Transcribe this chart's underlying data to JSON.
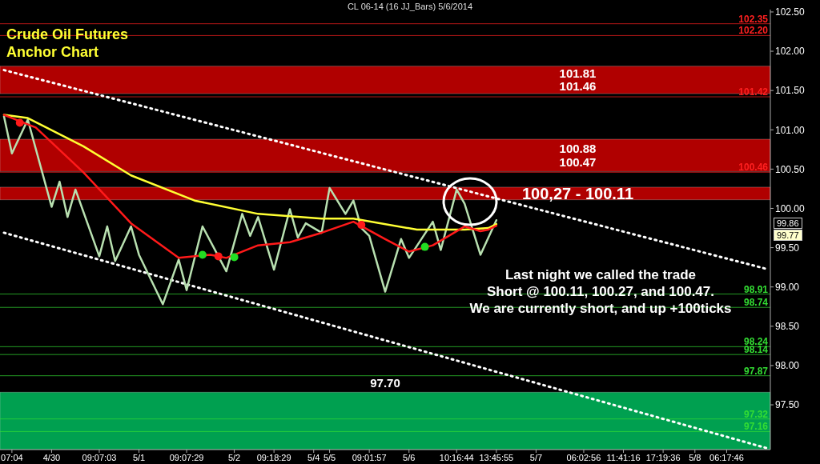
{
  "chart_data": {
    "type": "line",
    "title": "CL 06-14 (16 JJ_Bars)  5/6/2014",
    "categories": [
      null,
      "07:04",
      null,
      null,
      null,
      null,
      "4/30",
      null,
      null,
      null,
      null,
      null,
      "09:07:03",
      null,
      null,
      null,
      null,
      "5/1",
      null,
      null,
      null,
      null,
      null,
      "09:07:29",
      null,
      null,
      null,
      null,
      null,
      "5/2",
      null,
      null,
      null,
      null,
      "09:18:29",
      null,
      null,
      null,
      null,
      "5/4",
      null,
      "5/5",
      null,
      null,
      null,
      null,
      "09:01:57",
      null,
      null,
      null,
      null,
      "5/6",
      null,
      null,
      null,
      null,
      null,
      "10:16:44",
      null,
      null,
      null,
      null,
      "13:45:55",
      null,
      null,
      null,
      null,
      "5/7",
      null,
      null,
      null,
      null,
      null,
      "06:02:56",
      null,
      null,
      null,
      null,
      "11:41:16",
      null,
      null,
      null,
      null,
      "17:19:36",
      null,
      null,
      null,
      "5/8",
      null,
      null,
      null,
      "06:17:46",
      null,
      null,
      null,
      null,
      null
    ],
    "ylim": [
      96.93,
      102.53
    ],
    "yticks": [
      {
        "value": 97.5,
        "label": "97.50"
      },
      {
        "value": 98,
        "label": "98.00"
      },
      {
        "value": 98.5,
        "label": "98.50"
      },
      {
        "value": 99,
        "label": "99.00"
      },
      {
        "value": 99.5,
        "label": "99.50"
      },
      {
        "value": 100,
        "label": "100.00"
      },
      {
        "value": 100.5,
        "label": "100.50"
      },
      {
        "value": 101,
        "label": "101.00"
      },
      {
        "value": 101.5,
        "label": "101.50"
      },
      {
        "value": 102,
        "label": "102.00"
      },
      {
        "value": 102.5,
        "label": "102.50"
      }
    ],
    "grid": false,
    "legend": false,
    "series": [
      {
        "color": "#ffffff",
        "line_style": "dotted",
        "values": [
          101.76,
          null,
          null,
          null,
          null,
          null,
          null,
          null,
          null,
          null,
          null,
          null,
          null,
          null,
          null,
          null,
          null,
          null,
          null,
          null,
          null,
          null,
          null,
          null,
          null,
          null,
          null,
          null,
          null,
          null,
          null,
          null,
          null,
          null,
          null,
          null,
          null,
          null,
          null,
          null,
          null,
          null,
          null,
          null,
          null,
          null,
          null,
          null,
          null,
          null,
          null,
          null,
          null,
          null,
          null,
          null,
          null,
          null,
          null,
          null,
          null,
          null,
          null,
          null,
          null,
          null,
          null,
          null,
          null,
          null,
          null,
          null,
          null,
          null,
          null,
          null,
          null,
          null,
          null,
          null,
          null,
          null,
          null,
          null,
          null,
          null,
          null,
          null,
          null,
          null,
          null,
          null,
          null,
          null,
          null,
          null,
          99.23
        ]
      },
      {
        "color": "#ffffff",
        "line_style": "dotted",
        "values": [
          99.69,
          null,
          null,
          null,
          null,
          null,
          null,
          null,
          null,
          null,
          null,
          null,
          null,
          null,
          null,
          null,
          null,
          null,
          null,
          null,
          null,
          null,
          null,
          null,
          null,
          null,
          null,
          null,
          null,
          null,
          null,
          null,
          null,
          null,
          null,
          null,
          null,
          null,
          null,
          null,
          null,
          null,
          null,
          null,
          null,
          null,
          null,
          null,
          null,
          null,
          null,
          null,
          null,
          null,
          null,
          null,
          null,
          null,
          null,
          null,
          null,
          null,
          null,
          null,
          null,
          null,
          null,
          null,
          null,
          null,
          null,
          null,
          null,
          null,
          null,
          null,
          null,
          null,
          null,
          null,
          null,
          null,
          null,
          null,
          null,
          null,
          null,
          null,
          null,
          null,
          null,
          null,
          null,
          null,
          null,
          null,
          96.95
        ]
      },
      {
        "color": "#b8e0b0",
        "line_style": "solid",
        "values": [
          101.17,
          100.7,
          null,
          101.13,
          null,
          null,
          100.02,
          100.34,
          99.89,
          100.24,
          null,
          null,
          99.39,
          99.77,
          99.33,
          null,
          99.77,
          99.41,
          null,
          null,
          98.78,
          null,
          99.35,
          98.96,
          null,
          99.77,
          null,
          null,
          99.2,
          null,
          99.93,
          99.65,
          99.89,
          null,
          99.22,
          null,
          99.99,
          99.63,
          99.81,
          null,
          99.69,
          100.26,
          null,
          99.93,
          100.1,
          99.75,
          99.65,
          null,
          98.94,
          null,
          99.61,
          99.37,
          null,
          null,
          99.83,
          99.47,
          null,
          100.24,
          100.06,
          null,
          99.41,
          null,
          99.85,
          null,
          null,
          null,
          null,
          null,
          null,
          null,
          null,
          null,
          null,
          null,
          null,
          null,
          null,
          null,
          null,
          null,
          null,
          null,
          null,
          null,
          null,
          null,
          null,
          null,
          null,
          null,
          null,
          null,
          null,
          null,
          null,
          null,
          null
        ]
      },
      {
        "color": "#ffff33",
        "line_style": "solid",
        "values": [
          101.19,
          null,
          null,
          101.15,
          null,
          null,
          null,
          null,
          null,
          null,
          100.79,
          null,
          null,
          null,
          null,
          null,
          100.42,
          null,
          null,
          null,
          null,
          null,
          null,
          null,
          100.1,
          null,
          null,
          null,
          null,
          null,
          null,
          null,
          99.93,
          null,
          null,
          null,
          null,
          null,
          null,
          null,
          99.87,
          null,
          null,
          null,
          99.87,
          null,
          null,
          null,
          null,
          null,
          null,
          null,
          99.73,
          null,
          null,
          null,
          null,
          null,
          99.73,
          null,
          null,
          99.75,
          99.8,
          null,
          null,
          null,
          null,
          null,
          null,
          null,
          null,
          null,
          null,
          null,
          null,
          null,
          null,
          null,
          null,
          null,
          null,
          null,
          null,
          null,
          null,
          null,
          null,
          null,
          null,
          null,
          null,
          null,
          null,
          null,
          null,
          null,
          null
        ]
      },
      {
        "color": "#ff1a1a",
        "line_style": "solid",
        "values": [
          101.19,
          null,
          null,
          null,
          101.03,
          null,
          null,
          null,
          null,
          null,
          100.46,
          null,
          null,
          null,
          null,
          null,
          99.81,
          null,
          null,
          null,
          null,
          null,
          99.37,
          null,
          null,
          null,
          99.41,
          null,
          99.37,
          null,
          null,
          null,
          99.53,
          null,
          null,
          null,
          99.57,
          null,
          null,
          null,
          99.69,
          null,
          null,
          null,
          99.83,
          null,
          null,
          null,
          99.61,
          null,
          null,
          99.45,
          null,
          null,
          99.53,
          null,
          null,
          null,
          99.77,
          null,
          99.71,
          99.73,
          99.78,
          null,
          null,
          null,
          null,
          null,
          null,
          null,
          null,
          null,
          null,
          null,
          null,
          null,
          null,
          null,
          null,
          null,
          null,
          null,
          null,
          null,
          null,
          null,
          null,
          null,
          null,
          null,
          null,
          null,
          null,
          null,
          null,
          null,
          null
        ]
      },
      {
        "type": "scatter",
        "color": "#ff1a1a",
        "marker": "circle",
        "values": [
          null,
          null,
          101.09,
          null,
          null,
          null,
          null,
          null,
          null,
          null,
          null,
          null,
          null,
          null,
          null,
          null,
          null,
          null,
          null,
          null,
          null,
          null,
          null,
          null,
          null,
          null,
          null,
          99.39,
          null,
          null,
          null,
          null,
          null,
          null,
          null,
          null,
          null,
          null,
          null,
          null,
          null,
          null,
          null,
          null,
          null,
          99.79,
          null,
          null,
          null,
          null,
          null,
          null,
          null,
          null,
          null,
          null,
          null,
          null,
          null,
          null,
          null,
          null,
          null,
          null,
          null,
          null,
          null,
          null,
          null,
          null,
          null,
          null,
          null,
          null,
          null,
          null,
          null,
          null,
          null,
          null,
          null,
          null,
          null,
          null,
          null,
          null,
          null,
          null,
          null,
          null,
          null,
          null,
          null,
          null,
          null,
          null,
          null
        ]
      },
      {
        "type": "scatter",
        "color": "#22dd22",
        "marker": "circle",
        "values": [
          null,
          null,
          null,
          null,
          null,
          null,
          null,
          null,
          null,
          null,
          null,
          null,
          null,
          null,
          null,
          null,
          null,
          null,
          null,
          null,
          null,
          null,
          null,
          null,
          null,
          99.41,
          null,
          null,
          null,
          99.38,
          null,
          null,
          null,
          null,
          null,
          null,
          null,
          null,
          null,
          null,
          null,
          null,
          null,
          null,
          null,
          null,
          null,
          null,
          null,
          null,
          null,
          null,
          null,
          99.51,
          null,
          null,
          null,
          null,
          null,
          null,
          null,
          null,
          null,
          null,
          null,
          null,
          null,
          null,
          null,
          null,
          null,
          null,
          null,
          null,
          null,
          null,
          null,
          null,
          null,
          null,
          null,
          null,
          null,
          null,
          null,
          null,
          null,
          null,
          null,
          null,
          null,
          null,
          null,
          null,
          null,
          null,
          null
        ]
      }
    ],
    "bands": [
      {
        "axis": "y",
        "from": 101.46,
        "to": 101.81,
        "label": "101.81\n101.46",
        "color": "#b00000"
      },
      {
        "axis": "y",
        "from": 100.47,
        "to": 100.88,
        "label": "100.88\n100.47",
        "color": "#b00000"
      },
      {
        "axis": "y",
        "from": 100.11,
        "to": 100.27,
        "label": "100,27 - 100.11",
        "color": "#b00000"
      },
      {
        "axis": "y",
        "from": 96.93,
        "to": 97.66,
        "label": "97.70",
        "color": "#00a050"
      }
    ],
    "ref_lines": [
      {
        "axis": "y",
        "value": 102.35,
        "label": "102.35",
        "color": "#ff2020"
      },
      {
        "axis": "y",
        "value": 102.2,
        "label": "102.20",
        "color": "#ff2020"
      },
      {
        "axis": "y",
        "value": 101.42,
        "label": "101.42",
        "color": "#ff2020"
      },
      {
        "axis": "y",
        "value": 100.46,
        "label": "100.46",
        "color": "#ff2020"
      },
      {
        "axis": "y",
        "value": 98.91,
        "label": "98.91",
        "color": "#33dd33"
      },
      {
        "axis": "y",
        "value": 98.74,
        "label": "98.74",
        "color": "#33dd33"
      },
      {
        "axis": "y",
        "value": 98.24,
        "label": "98.24",
        "color": "#33dd33"
      },
      {
        "axis": "y",
        "value": 98.14,
        "label": "98.14",
        "color": "#33dd33"
      },
      {
        "axis": "y",
        "value": 97.87,
        "label": "97.87",
        "color": "#33dd33"
      },
      {
        "axis": "y",
        "value": 97.32,
        "label": "97.32",
        "color": "#33dd33"
      },
      {
        "axis": "y",
        "value": 97.16,
        "label": "97.16",
        "color": "#33dd33"
      }
    ],
    "annotations": [
      "Crude Oil Futures",
      "Anchor Chart",
      "Last night we called the trade",
      "Short @ 100.11, 100.27, and 100.47.",
      "We are currently short, and up +100ticks",
      "99.86",
      "99.77"
    ]
  }
}
